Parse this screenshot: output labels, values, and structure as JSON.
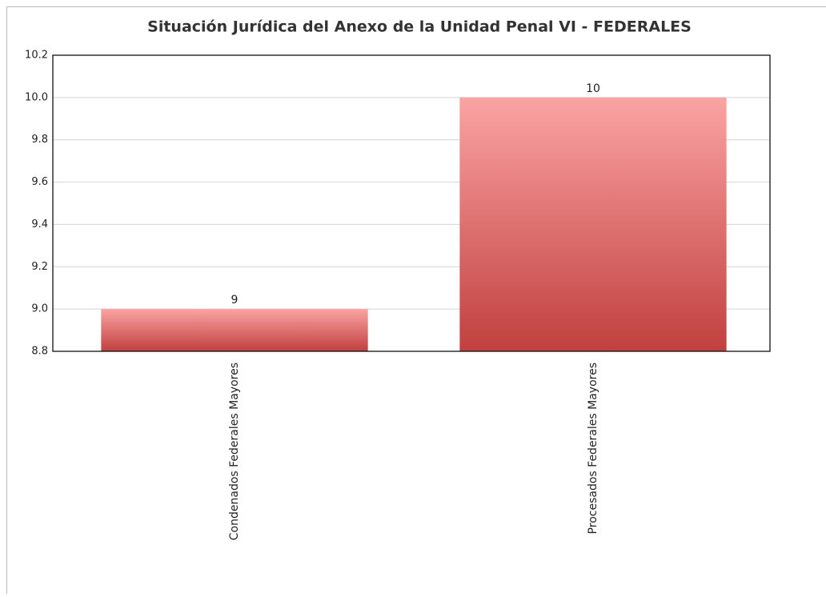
{
  "chart_data": {
    "type": "bar",
    "title": "Situación Jurídica del Anexo de la Unidad Penal VI - FEDERALES",
    "categories": [
      "Condenados Federales Mayores",
      "Procesados Federales Mayores"
    ],
    "values": [
      9,
      10
    ],
    "color": "#c0403f",
    "ylim": [
      8.8,
      10.2
    ],
    "yticks": [
      8.8,
      {
        "value": 9,
        "label": "9.0"
      },
      9.2,
      9.4,
      9.6,
      9.8,
      {
        "value": 10,
        "label": "10.0"
      },
      10.2
    ],
    "grid": true
  }
}
